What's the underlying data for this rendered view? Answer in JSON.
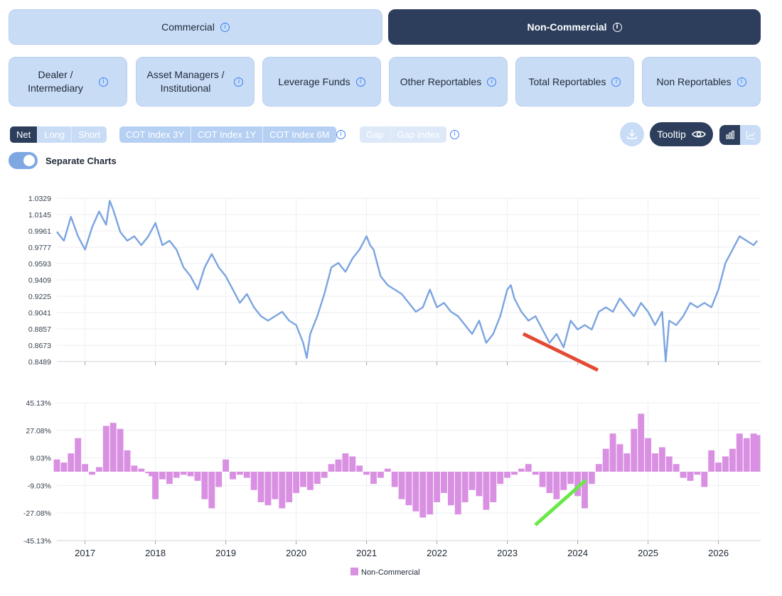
{
  "tabs": [
    {
      "label": "Commercial",
      "active": false
    },
    {
      "label": "Non-Commercial",
      "active": true
    }
  ],
  "subtabs": [
    {
      "label": "Dealer /\nIntermediary"
    },
    {
      "label": "Asset Managers /\nInstitutional"
    },
    {
      "label": "Leverage Funds"
    },
    {
      "label": "Other Reportables"
    },
    {
      "label": "Total Reportables"
    },
    {
      "label": "Non Reportables"
    }
  ],
  "position_modes": [
    "Net",
    "Long",
    "Short"
  ],
  "position_mode_selected": "Net",
  "cot_index": [
    "COT Index 3Y",
    "COT Index 1Y",
    "COT Index 6M"
  ],
  "gap_options": [
    "Gap",
    "Gap Index"
  ],
  "tooltip_label": "Tooltip",
  "separate_charts_label": "Separate Charts",
  "separate_charts_on": true,
  "icons": {
    "info": "info-icon",
    "download": "download-icon",
    "eye": "eye-icon",
    "bar": "bar-chart-icon",
    "line": "line-chart-icon"
  },
  "colors": {
    "accent": "#2c3e5c",
    "button": "#c8dcf6",
    "price_line": "#7ba4e0",
    "bars": "#d990e2",
    "red_annotation": "#e34a33",
    "green_annotation": "#6ae84a"
  },
  "chart_data": [
    {
      "type": "line",
      "ylim": [
        0.8489,
        1.0329
      ],
      "yticks": [
        "1.0329",
        "1.0145",
        "0.9961",
        "0.9777",
        "0.9593",
        "0.9409",
        "0.9225",
        "0.9041",
        "0.8857",
        "0.8673",
        "0.8489"
      ],
      "series": [
        {
          "x": [
            2016.6,
            2016.7,
            2016.8,
            2016.9,
            2017.0,
            2017.1,
            2017.2,
            2017.3,
            2017.35,
            2017.4,
            2017.5,
            2017.6,
            2017.7,
            2017.8,
            2017.9,
            2018.0,
            2018.1,
            2018.2,
            2018.3,
            2018.4,
            2018.5,
            2018.6,
            2018.7,
            2018.8,
            2018.9,
            2019.0,
            2019.1,
            2019.2,
            2019.3,
            2019.4,
            2019.5,
            2019.6,
            2019.7,
            2019.8,
            2019.9,
            2020.0,
            2020.1,
            2020.15,
            2020.2,
            2020.3,
            2020.4,
            2020.5,
            2020.6,
            2020.7,
            2020.8,
            2020.9,
            2021.0,
            2021.05,
            2021.1,
            2021.2,
            2021.3,
            2021.4,
            2021.5,
            2021.6,
            2021.7,
            2021.8,
            2021.9,
            2022.0,
            2022.1,
            2022.2,
            2022.3,
            2022.4,
            2022.5,
            2022.6,
            2022.7,
            2022.8,
            2022.9,
            2023.0,
            2023.05,
            2023.1,
            2023.2,
            2023.3,
            2023.4,
            2023.5,
            2023.6,
            2023.7,
            2023.8,
            2023.9,
            2024.0,
            2024.1,
            2024.2,
            2024.3,
            2024.4,
            2024.5,
            2024.6,
            2024.7,
            2024.8,
            2024.9,
            2025.0,
            2025.1,
            2025.2,
            2025.25,
            2025.3,
            2025.4,
            2025.5,
            2025.6,
            2025.7,
            2025.8,
            2025.9,
            2026.0,
            2026.1,
            2026.2,
            2026.3,
            2026.4,
            2026.5,
            2026.55
          ],
          "y": [
            0.995,
            0.985,
            1.012,
            0.99,
            0.975,
            1.0,
            1.018,
            1.003,
            1.03,
            1.02,
            0.995,
            0.985,
            0.99,
            0.98,
            0.99,
            1.005,
            0.98,
            0.985,
            0.975,
            0.955,
            0.945,
            0.93,
            0.955,
            0.97,
            0.955,
            0.945,
            0.93,
            0.915,
            0.925,
            0.91,
            0.9,
            0.895,
            0.9,
            0.905,
            0.895,
            0.89,
            0.87,
            0.853,
            0.88,
            0.9,
            0.925,
            0.955,
            0.96,
            0.95,
            0.965,
            0.975,
            0.99,
            0.98,
            0.975,
            0.945,
            0.935,
            0.93,
            0.925,
            0.915,
            0.905,
            0.91,
            0.93,
            0.91,
            0.915,
            0.905,
            0.9,
            0.89,
            0.88,
            0.895,
            0.87,
            0.88,
            0.9,
            0.93,
            0.935,
            0.92,
            0.905,
            0.895,
            0.9,
            0.885,
            0.87,
            0.88,
            0.865,
            0.895,
            0.885,
            0.89,
            0.885,
            0.905,
            0.91,
            0.905,
            0.92,
            0.91,
            0.9,
            0.915,
            0.905,
            0.89,
            0.905,
            0.849,
            0.895,
            0.89,
            0.9,
            0.915,
            0.91,
            0.915,
            0.91,
            0.93,
            0.96,
            0.975,
            0.99,
            0.985,
            0.98,
            0.985
          ]
        }
      ]
    },
    {
      "type": "bar",
      "ylim": [
        -45.13,
        45.13
      ],
      "yticks": [
        "45.13%",
        "27.08%",
        "9.03%",
        "-9.03%",
        "-27.08%",
        "-45.13%"
      ],
      "xticks": [
        "2017",
        "2018",
        "2019",
        "2020",
        "2021",
        "2022",
        "2023",
        "2024",
        "2025",
        "2026"
      ],
      "legend": [
        "Non-Commercial"
      ],
      "series": [
        {
          "name": "Non-Commercial",
          "x": [
            2016.6,
            2016.7,
            2016.8,
            2016.9,
            2017.0,
            2017.1,
            2017.2,
            2017.3,
            2017.4,
            2017.5,
            2017.6,
            2017.7,
            2017.8,
            2017.9,
            2017.95,
            2018.0,
            2018.1,
            2018.2,
            2018.3,
            2018.4,
            2018.5,
            2018.6,
            2018.7,
            2018.8,
            2018.9,
            2019.0,
            2019.1,
            2019.2,
            2019.3,
            2019.4,
            2019.5,
            2019.6,
            2019.7,
            2019.8,
            2019.9,
            2020.0,
            2020.1,
            2020.2,
            2020.3,
            2020.4,
            2020.5,
            2020.6,
            2020.7,
            2020.8,
            2020.9,
            2021.0,
            2021.1,
            2021.2,
            2021.3,
            2021.4,
            2021.5,
            2021.6,
            2021.7,
            2021.8,
            2021.9,
            2022.0,
            2022.1,
            2022.2,
            2022.3,
            2022.4,
            2022.5,
            2022.6,
            2022.7,
            2022.8,
            2022.9,
            2023.0,
            2023.1,
            2023.2,
            2023.3,
            2023.4,
            2023.5,
            2023.6,
            2023.7,
            2023.8,
            2023.9,
            2024.0,
            2024.1,
            2024.2,
            2024.3,
            2024.4,
            2024.5,
            2024.6,
            2024.7,
            2024.8,
            2024.9,
            2025.0,
            2025.1,
            2025.2,
            2025.3,
            2025.4,
            2025.5,
            2025.6,
            2025.7,
            2025.8,
            2025.9,
            2026.0,
            2026.1,
            2026.2,
            2026.3,
            2026.4,
            2026.5,
            2026.55
          ],
          "values": [
            8,
            6,
            12,
            22,
            5,
            -2,
            3,
            30,
            32,
            28,
            14,
            4,
            2,
            -1,
            -3,
            -18,
            -5,
            -8,
            -4,
            -2,
            -3,
            -6,
            -18,
            -24,
            -10,
            8,
            -5,
            -2,
            -4,
            -12,
            -20,
            -22,
            -18,
            -24,
            -20,
            -14,
            -10,
            -12,
            -8,
            -4,
            5,
            8,
            12,
            10,
            4,
            -2,
            -8,
            -4,
            2,
            -10,
            -18,
            -22,
            -26,
            -30,
            -28,
            -20,
            -14,
            -22,
            -28,
            -20,
            -12,
            -16,
            -25,
            -20,
            -8,
            -4,
            -2,
            2,
            5,
            -2,
            -10,
            -14,
            -18,
            -12,
            -8,
            -16,
            -24,
            -8,
            5,
            15,
            25,
            18,
            12,
            28,
            38,
            22,
            12,
            16,
            10,
            5,
            -4,
            -6,
            -2,
            -10,
            14,
            6,
            10,
            15,
            25,
            22,
            25,
            24
          ]
        }
      ]
    }
  ]
}
